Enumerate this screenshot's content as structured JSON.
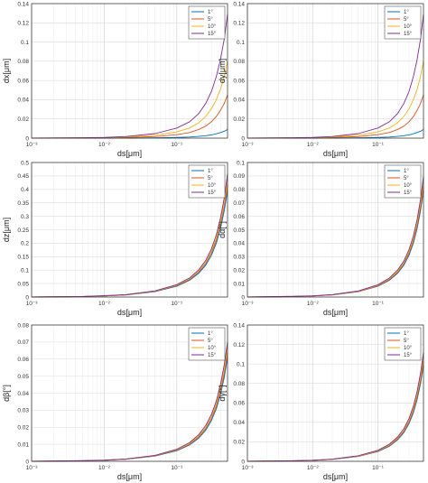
{
  "figure": {
    "series_colors": [
      "#0072BD",
      "#D95319",
      "#EDB120",
      "#7E2F8E"
    ]
  },
  "chart_data": [
    {
      "type": "line",
      "panel": "top-left",
      "xlabel": "ds[μm]",
      "ylabel": "dx[μm]",
      "xscale": "log",
      "xlim": [
        0.001,
        0.5
      ],
      "ylim": [
        0,
        0.14
      ],
      "xticks": [
        "10⁻³",
        "10⁻²",
        "10⁻¹"
      ],
      "yticks": [
        "0",
        "0.02",
        "0.04",
        "0.06",
        "0.08",
        "0.1",
        "0.12",
        "0.14"
      ],
      "grid": true,
      "legend_position": "top-right",
      "x": [
        0.001,
        0.005,
        0.01,
        0.02,
        0.05,
        0.1,
        0.15,
        0.2,
        0.25,
        0.3,
        0.35,
        0.4,
        0.45,
        0.5
      ],
      "series": [
        {
          "name": "1°",
          "values": [
            0.0,
            0.0,
            0.0001,
            0.0001,
            0.0003,
            0.0007,
            0.0011,
            0.0018,
            0.0025,
            0.0034,
            0.0045,
            0.0058,
            0.0072,
            0.009
          ]
        },
        {
          "name": "5°",
          "values": [
            0.0,
            0.0001,
            0.0003,
            0.0006,
            0.0016,
            0.0036,
            0.0058,
            0.009,
            0.0125,
            0.017,
            0.0225,
            0.029,
            0.036,
            0.045
          ]
        },
        {
          "name": "10°",
          "values": [
            0.0001,
            0.0003,
            0.0005,
            0.0011,
            0.003,
            0.0065,
            0.0105,
            0.016,
            0.0225,
            0.0305,
            0.04,
            0.051,
            0.064,
            0.08
          ]
        },
        {
          "name": "15°",
          "values": [
            0.0001,
            0.0004,
            0.0008,
            0.0017,
            0.0047,
            0.0105,
            0.017,
            0.0255,
            0.036,
            0.0485,
            0.064,
            0.082,
            0.103,
            0.129
          ]
        }
      ]
    },
    {
      "type": "line",
      "panel": "top-right",
      "xlabel": "ds[μm]",
      "ylabel": "dy[μm]",
      "xscale": "log",
      "xlim": [
        0.001,
        0.5
      ],
      "ylim": [
        0,
        0.14
      ],
      "xticks": [
        "10⁻³",
        "10⁻²",
        "10⁻¹"
      ],
      "yticks": [
        "0",
        "0.02",
        "0.04",
        "0.06",
        "0.08",
        "0.1",
        "0.12",
        "0.14"
      ],
      "grid": true,
      "legend_position": "top-right",
      "x": [
        0.001,
        0.005,
        0.01,
        0.02,
        0.05,
        0.1,
        0.15,
        0.2,
        0.25,
        0.3,
        0.35,
        0.4,
        0.45,
        0.5
      ],
      "series": [
        {
          "name": "1°",
          "values": [
            0.0,
            0.0,
            0.0001,
            0.0001,
            0.0003,
            0.0007,
            0.0011,
            0.0018,
            0.0025,
            0.0034,
            0.0045,
            0.0058,
            0.0072,
            0.009
          ]
        },
        {
          "name": "5°",
          "values": [
            0.0,
            0.0001,
            0.0003,
            0.0006,
            0.0016,
            0.0036,
            0.0058,
            0.009,
            0.0125,
            0.017,
            0.0225,
            0.029,
            0.036,
            0.045
          ]
        },
        {
          "name": "10°",
          "values": [
            0.0001,
            0.0003,
            0.0005,
            0.0011,
            0.003,
            0.0065,
            0.0105,
            0.016,
            0.0225,
            0.0305,
            0.04,
            0.051,
            0.064,
            0.08
          ]
        },
        {
          "name": "15°",
          "values": [
            0.0001,
            0.0004,
            0.0008,
            0.0017,
            0.0047,
            0.0105,
            0.017,
            0.0255,
            0.036,
            0.0485,
            0.064,
            0.082,
            0.103,
            0.129
          ]
        }
      ]
    },
    {
      "type": "line",
      "panel": "middle-left",
      "xlabel": "ds[μm]",
      "ylabel": "dz[μm]",
      "xscale": "log",
      "xlim": [
        0.001,
        0.5
      ],
      "ylim": [
        0,
        0.5
      ],
      "xticks": [
        "10⁻³",
        "10⁻²",
        "10⁻¹"
      ],
      "yticks": [
        "0",
        "0.05",
        "0.1",
        "0.15",
        "0.2",
        "0.25",
        "0.3",
        "0.35",
        "0.4",
        "0.45",
        "0.5"
      ],
      "grid": true,
      "legend_position": "top-right",
      "x": [
        0.001,
        0.005,
        0.01,
        0.02,
        0.05,
        0.1,
        0.15,
        0.2,
        0.25,
        0.3,
        0.35,
        0.4,
        0.45,
        0.5
      ],
      "series": [
        {
          "name": "1°",
          "values": [
            0.0,
            0.002,
            0.004,
            0.008,
            0.02,
            0.04,
            0.062,
            0.088,
            0.118,
            0.155,
            0.2,
            0.255,
            0.32,
            0.395
          ]
        },
        {
          "name": "5°",
          "values": [
            0.0,
            0.002,
            0.004,
            0.008,
            0.021,
            0.042,
            0.065,
            0.092,
            0.124,
            0.163,
            0.21,
            0.268,
            0.335,
            0.415
          ]
        },
        {
          "name": "10°",
          "values": [
            0.0,
            0.002,
            0.004,
            0.009,
            0.022,
            0.044,
            0.068,
            0.097,
            0.13,
            0.171,
            0.22,
            0.28,
            0.35,
            0.435
          ]
        },
        {
          "name": "15°",
          "values": [
            0.0,
            0.002,
            0.005,
            0.009,
            0.023,
            0.046,
            0.071,
            0.101,
            0.136,
            0.179,
            0.231,
            0.294,
            0.368,
            0.457
          ]
        }
      ]
    },
    {
      "type": "line",
      "panel": "middle-right",
      "xlabel": "ds[μm]",
      "ylabel": "dα[°]",
      "xscale": "log",
      "xlim": [
        0.001,
        0.5
      ],
      "ylim": [
        0,
        0.1
      ],
      "xticks": [
        "10⁻³",
        "10⁻²",
        "10⁻¹"
      ],
      "yticks": [
        "0",
        "0.01",
        "0.02",
        "0.03",
        "0.04",
        "0.05",
        "0.06",
        "0.07",
        "0.08",
        "0.09",
        "0.1"
      ],
      "grid": true,
      "legend_position": "top-right",
      "x": [
        0.001,
        0.005,
        0.01,
        0.02,
        0.05,
        0.1,
        0.15,
        0.2,
        0.25,
        0.3,
        0.35,
        0.4,
        0.45,
        0.5
      ],
      "series": [
        {
          "name": "1°",
          "values": [
            0.0,
            0.0004,
            0.0008,
            0.0016,
            0.004,
            0.008,
            0.0124,
            0.0176,
            0.0236,
            0.031,
            0.04,
            0.051,
            0.064,
            0.079
          ]
        },
        {
          "name": "5°",
          "values": [
            0.0,
            0.0004,
            0.0008,
            0.0016,
            0.0041,
            0.0083,
            0.0129,
            0.0183,
            0.0246,
            0.0323,
            0.0416,
            0.053,
            0.0665,
            0.0822
          ]
        },
        {
          "name": "10°",
          "values": [
            0.0,
            0.0004,
            0.0009,
            0.0017,
            0.0043,
            0.0087,
            0.0135,
            0.0191,
            0.0257,
            0.0337,
            0.0434,
            0.0553,
            0.0693,
            0.0858
          ]
        },
        {
          "name": "15°",
          "values": [
            0.0,
            0.0005,
            0.0009,
            0.0018,
            0.0045,
            0.0091,
            0.0141,
            0.02,
            0.0268,
            0.0352,
            0.0454,
            0.0578,
            0.0724,
            0.0896
          ]
        }
      ]
    },
    {
      "type": "line",
      "panel": "bottom-left",
      "xlabel": "ds[μm]",
      "ylabel": "dβ[°]",
      "xscale": "log",
      "xlim": [
        0.001,
        0.5
      ],
      "ylim": [
        0,
        0.08
      ],
      "xticks": [
        "10⁻³",
        "10⁻²",
        "10⁻¹"
      ],
      "yticks": [
        "0",
        "0.01",
        "0.02",
        "0.03",
        "0.04",
        "0.05",
        "0.06",
        "0.07",
        "0.08"
      ],
      "grid": true,
      "legend_position": "top-right",
      "x": [
        0.001,
        0.005,
        0.01,
        0.02,
        0.05,
        0.1,
        0.15,
        0.2,
        0.25,
        0.3,
        0.35,
        0.4,
        0.45,
        0.5
      ],
      "series": [
        {
          "name": "1°",
          "values": [
            0.0,
            0.0003,
            0.0006,
            0.0012,
            0.0031,
            0.0062,
            0.0096,
            0.0136,
            0.0182,
            0.0239,
            0.0308,
            0.0392,
            0.0492,
            0.0608
          ]
        },
        {
          "name": "5°",
          "values": [
            0.0,
            0.0003,
            0.0006,
            0.0013,
            0.0032,
            0.0065,
            0.01,
            0.0142,
            0.0191,
            0.025,
            0.0322,
            0.041,
            0.0514,
            0.0636
          ]
        },
        {
          "name": "10°",
          "values": [
            0.0,
            0.0003,
            0.0007,
            0.0013,
            0.0034,
            0.0068,
            0.0105,
            0.0149,
            0.02,
            0.0262,
            0.0338,
            0.043,
            0.0539,
            0.0667
          ]
        },
        {
          "name": "15°",
          "values": [
            0.0,
            0.0004,
            0.0007,
            0.0014,
            0.0035,
            0.0071,
            0.011,
            0.0156,
            0.021,
            0.0275,
            0.0354,
            0.0451,
            0.0566,
            0.07
          ]
        }
      ]
    },
    {
      "type": "line",
      "panel": "bottom-right",
      "xlabel": "ds[μm]",
      "ylabel": "dγ[°]",
      "xscale": "log",
      "xlim": [
        0.001,
        0.5
      ],
      "ylim": [
        0,
        0.14
      ],
      "xticks": [
        "10⁻³",
        "10⁻²",
        "10⁻¹"
      ],
      "yticks": [
        "0",
        "0.02",
        "0.04",
        "0.06",
        "0.08",
        "0.1",
        "0.12",
        "0.14"
      ],
      "grid": true,
      "legend_position": "top-right",
      "x": [
        0.001,
        0.005,
        0.01,
        0.02,
        0.05,
        0.1,
        0.15,
        0.2,
        0.25,
        0.3,
        0.35,
        0.4,
        0.45,
        0.5
      ],
      "series": [
        {
          "name": "1°",
          "values": [
            0.0,
            0.0005,
            0.001,
            0.002,
            0.005,
            0.01,
            0.0155,
            0.022,
            0.0295,
            0.0387,
            0.0498,
            0.0635,
            0.0796,
            0.0985
          ]
        },
        {
          "name": "5°",
          "values": [
            0.0,
            0.0005,
            0.001,
            0.0021,
            0.0052,
            0.0104,
            0.0161,
            0.0229,
            0.0307,
            0.0403,
            0.0519,
            0.0661,
            0.0829,
            0.1026
          ]
        },
        {
          "name": "10°",
          "values": [
            0.0,
            0.0005,
            0.0011,
            0.0022,
            0.0054,
            0.0108,
            0.0168,
            0.0239,
            0.032,
            0.0421,
            0.0542,
            0.069,
            0.0865,
            0.1071
          ]
        },
        {
          "name": "15°",
          "values": [
            0.0,
            0.0006,
            0.0011,
            0.0023,
            0.0057,
            0.0113,
            0.0176,
            0.0249,
            0.0335,
            0.044,
            0.0566,
            0.0721,
            0.0903,
            0.1118
          ]
        }
      ]
    }
  ]
}
